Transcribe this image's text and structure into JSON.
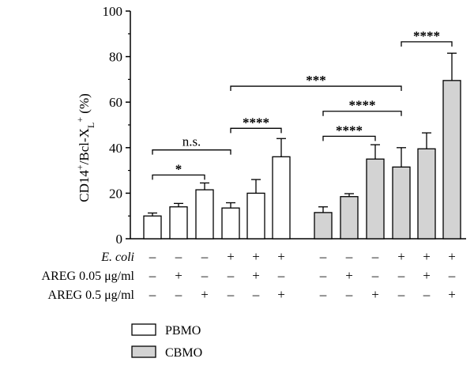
{
  "chart_data": {
    "type": "bar",
    "ylabel": "CD14⁺/Bcl-X_L⁺ (%)",
    "ylabel_parts": {
      "base": "CD14",
      "plus": "+",
      "mid": "/Bcl-X",
      "sub": "L",
      "tail": " (%)"
    },
    "ylim": [
      0,
      100
    ],
    "yticks": [
      "0",
      "20",
      "40",
      "60",
      "80",
      "100"
    ],
    "grid": false,
    "legend_position": "bottom",
    "series": [
      {
        "name": "PBMO",
        "color": "#ffffff",
        "values": [
          10,
          14,
          21.5,
          13.5,
          20,
          36
        ],
        "errors": [
          1.3,
          1.5,
          3,
          2.3,
          6,
          8
        ]
      },
      {
        "name": "CBMO",
        "color": "#d3d3d3",
        "values": [
          11.5,
          18.5,
          35,
          31.5,
          39.5,
          69.5
        ],
        "errors": [
          2.5,
          1.3,
          6.3,
          8.5,
          7,
          12
        ]
      }
    ],
    "conditions": [
      {
        "label": "E. coli",
        "signs": [
          "–",
          "–",
          "–",
          "+",
          "+",
          "+",
          "–",
          "–",
          "–",
          "+",
          "+",
          "+"
        ]
      },
      {
        "label": "AREG 0.05 μg/ml",
        "signs": [
          "–",
          "+",
          "–",
          "–",
          "+",
          "–",
          "–",
          "+",
          "–",
          "–",
          "+",
          "–"
        ]
      },
      {
        "label": "AREG 0.5 μg/ml",
        "signs": [
          "–",
          "–",
          "+",
          "–",
          "–",
          "+",
          "–",
          "–",
          "+",
          "–",
          "–",
          "+"
        ]
      }
    ],
    "significance": [
      {
        "from": 0,
        "to": 2,
        "y": 28,
        "label": "*"
      },
      {
        "from": 0,
        "to": 3,
        "y": 39,
        "label": "n.s."
      },
      {
        "from": 3,
        "to": 5,
        "y": 48.5,
        "label": "****"
      },
      {
        "from": 3,
        "to": 9,
        "y": 67,
        "label": "***"
      },
      {
        "from": 6,
        "to": 8,
        "y": 45,
        "label": "****"
      },
      {
        "from": 6,
        "to": 9,
        "y": 56,
        "label": "****"
      },
      {
        "from": 9,
        "to": 11,
        "y": 86.5,
        "label": "****"
      }
    ]
  }
}
